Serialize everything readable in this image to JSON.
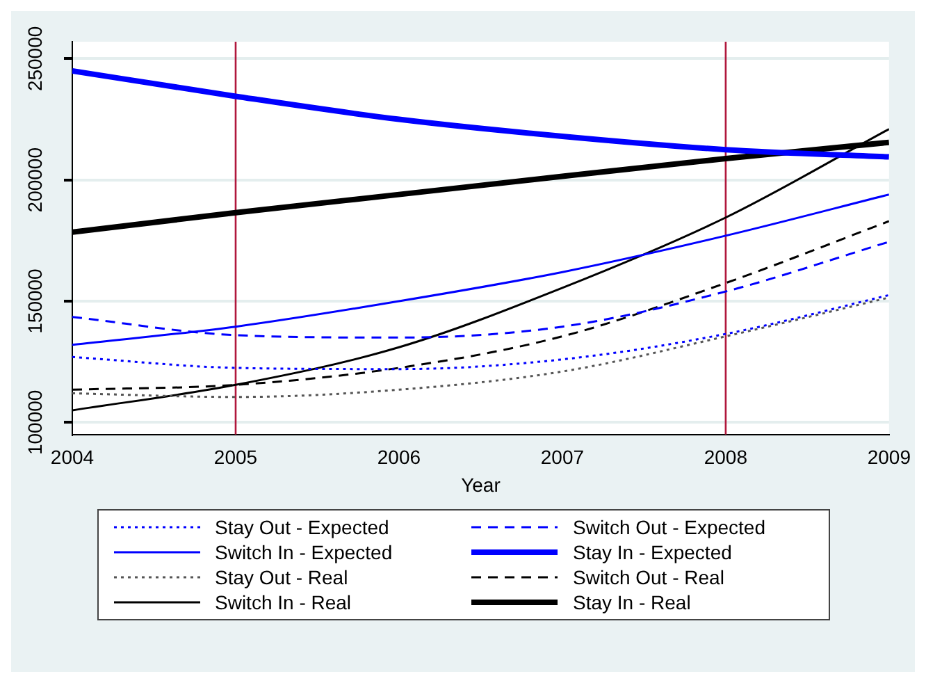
{
  "chart_data": {
    "type": "line",
    "xlabel": "Year",
    "x": [
      2004,
      2005,
      2006,
      2007,
      2008,
      2009
    ],
    "xlim": [
      2004,
      2009
    ],
    "xticks": [
      2004,
      2005,
      2006,
      2007,
      2008,
      2009
    ],
    "ylim": [
      95000,
      257000
    ],
    "yticks": [
      100000,
      150000,
      200000,
      250000
    ],
    "grid": "y",
    "legend": "bottom",
    "marker": "none",
    "series": [
      {
        "name": "Stay Out - Expected",
        "color": "#0000ff",
        "line_style": "dotted",
        "values": [
          127000,
          122500,
          122000,
          126000,
          136500,
          152500
        ]
      },
      {
        "name": "Switch Out - Expected",
        "color": "#0000ff",
        "line_style": "dashed",
        "values": [
          143500,
          136000,
          135000,
          139500,
          154000,
          174500
        ]
      },
      {
        "name": "Switch In - Expected",
        "color": "#0000ff",
        "line_style": "solid",
        "values": [
          132000,
          139500,
          150000,
          162000,
          177000,
          194000
        ]
      },
      {
        "name": "Stay In - Expected",
        "color": "#0000ff",
        "line_style": "solid",
        "values": [
          245000,
          234500,
          225000,
          218000,
          212500,
          209500
        ]
      },
      {
        "name": "Stay Out - Real",
        "color": "#555555",
        "line_style": "dotted",
        "values": [
          112000,
          110500,
          113500,
          121000,
          135500,
          151500
        ]
      },
      {
        "name": "Switch Out - Real",
        "color": "#000000",
        "line_style": "dashed",
        "values": [
          113500,
          115500,
          122500,
          135500,
          157500,
          183000
        ]
      },
      {
        "name": "Switch In - Real",
        "color": "#000000",
        "line_style": "solid",
        "values": [
          105000,
          115500,
          131000,
          155500,
          184500,
          221000
        ]
      },
      {
        "name": "Stay In - Real",
        "color": "#000000",
        "line_style": "solid",
        "values": [
          178500,
          186500,
          194000,
          201500,
          208800,
          215500
        ]
      }
    ],
    "ref_lines": [
      {
        "axis": "x",
        "value": 2005,
        "color": "#b0173c"
      },
      {
        "axis": "x",
        "value": 2008,
        "color": "#b0173c"
      }
    ]
  }
}
